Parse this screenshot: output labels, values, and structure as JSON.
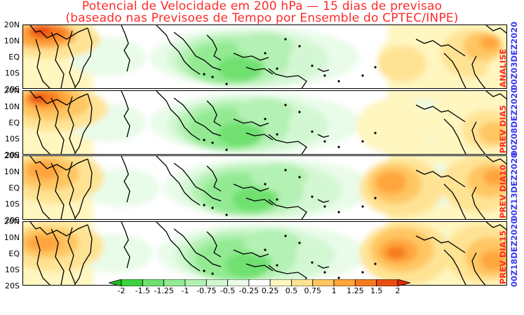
{
  "title": {
    "line1": "Potencial de Velocidade em 200 hPa — 15 dias de previsao",
    "line2": "(baseado nas Previsoes de Tempo por Ensemble do CPTEC/INPE)"
  },
  "latitude_labels": [
    "20N",
    "10N",
    "EQ",
    "10S",
    "20S"
  ],
  "panels": [
    {
      "label": "ANALISE",
      "date": "00Z03DEZ2020"
    },
    {
      "label": "PREV DIA5",
      "date": "00Z08DEZ2020"
    },
    {
      "label": "PREV DIA10",
      "date": "00Z13DEZ2020"
    },
    {
      "label": "PREV DIA15",
      "date": "00Z18DEZ2020"
    }
  ],
  "colorbar": {
    "levels": [
      "-2",
      "-1.5",
      "-1.25",
      "-1",
      "-0.75",
      "-0.5",
      "-0.25",
      "0.25",
      "0.5",
      "0.75",
      "1",
      "1.25",
      "1.5",
      "2"
    ],
    "colors": [
      "#1fbf1f",
      "#3fd23f",
      "#6fe06f",
      "#93ea93",
      "#b4f1b4",
      "#d3f7d3",
      "#e9fbe9",
      "#ffffff",
      "#fff6c0",
      "#ffe394",
      "#ffc662",
      "#ffa53c",
      "#f57a1e",
      "#e84f12",
      "#d92a08"
    ]
  },
  "colors": {
    "title": "#ff2a2a",
    "panel_label": "#ff2a2a",
    "panel_date": "#3a3af0"
  }
}
